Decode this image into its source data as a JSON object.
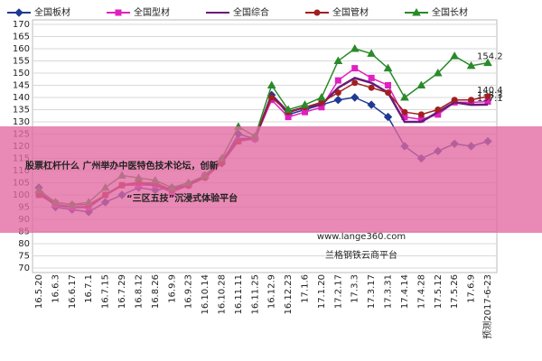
{
  "chart_data": {
    "type": "line",
    "categories": [
      "16.5.20",
      "16.6.3",
      "16.6.17",
      "16.7.1",
      "16.7.15",
      "16.7.29",
      "16.8.12",
      "16.8.26",
      "16.9.9",
      "16.9.23",
      "16.10.14",
      "16.10.28",
      "16.11.11",
      "16.11.25",
      "16.12.9",
      "16.12.23",
      "17.1.6",
      "17.1.20",
      "17.2.17",
      "17.3.3",
      "17.3.17",
      "17.3.31",
      "17.4.14",
      "17.4.28",
      "17.5.12",
      "17.5.26",
      "17.6.9",
      "预测2017-6-23"
    ],
    "series": [
      {
        "name": "全国板材",
        "color": "#1f3a93",
        "marker": "diamond",
        "values": [
          103,
          95,
          94,
          93,
          97,
          100,
          103,
          102,
          103,
          104,
          108,
          113,
          125,
          123,
          141,
          133,
          135,
          137,
          139,
          140,
          137,
          132,
          120,
          115,
          118,
          121,
          120,
          122
        ]
      },
      {
        "name": "全国型材",
        "color": "#e020c0",
        "marker": "square",
        "values": [
          100,
          96,
          95,
          95,
          100,
          104,
          104,
          104,
          101,
          104,
          108,
          114,
          122,
          123,
          139,
          132,
          134,
          136,
          147,
          152,
          148,
          145,
          132,
          131,
          133,
          138,
          138,
          138.3
        ],
        "value_labels": [
          null,
          null,
          null,
          null,
          null,
          null,
          null,
          null,
          null,
          null,
          null,
          null,
          null,
          null,
          null,
          null,
          null,
          null,
          null,
          null,
          null,
          null,
          null,
          null,
          null,
          null,
          null,
          "138.3"
        ]
      },
      {
        "name": "全国综合",
        "color": "#6a1a7a",
        "marker": "none",
        "values": [
          101,
          96,
          95,
          95,
          100,
          104,
          105,
          104,
          102,
          104,
          108,
          114,
          123,
          123,
          141,
          134,
          136,
          137,
          144,
          148,
          146,
          142,
          130,
          130,
          134,
          138,
          137,
          137.1
        ],
        "value_labels": [
          null,
          null,
          null,
          null,
          null,
          null,
          null,
          null,
          null,
          null,
          null,
          null,
          null,
          null,
          null,
          null,
          null,
          null,
          null,
          null,
          null,
          null,
          null,
          null,
          null,
          null,
          null,
          "137.1"
        ]
      },
      {
        "name": "全国管材",
        "color": "#a02020",
        "marker": "circle",
        "values": [
          100,
          97,
          96,
          96,
          100,
          104,
          105,
          105,
          102,
          104,
          107,
          113,
          122,
          124,
          140,
          134,
          136,
          138,
          142,
          146,
          144,
          142,
          134,
          133,
          135,
          139,
          139,
          140.4
        ],
        "value_labels": [
          null,
          null,
          null,
          null,
          null,
          null,
          null,
          null,
          null,
          null,
          null,
          null,
          null,
          null,
          null,
          null,
          null,
          null,
          null,
          null,
          null,
          null,
          null,
          null,
          null,
          null,
          null,
          "140.4"
        ]
      },
      {
        "name": "全国长材",
        "color": "#2a8a2a",
        "marker": "triangle",
        "values": [
          102,
          97,
          96,
          97,
          103,
          108,
          107,
          106,
          103,
          105,
          108,
          115,
          128,
          124,
          145,
          135,
          137,
          140,
          155,
          160,
          158,
          152,
          140,
          145,
          150,
          157,
          153,
          154.2
        ],
        "value_labels": [
          null,
          null,
          null,
          null,
          null,
          null,
          null,
          null,
          null,
          null,
          null,
          null,
          null,
          null,
          null,
          null,
          null,
          null,
          null,
          null,
          null,
          null,
          null,
          null,
          null,
          null,
          null,
          "154.2"
        ]
      }
    ],
    "ylim": [
      70,
      170
    ],
    "yticks": [
      70,
      75,
      80,
      85,
      90,
      95,
      100,
      105,
      110,
      115,
      120,
      125,
      130,
      135,
      140,
      145,
      150,
      155,
      160,
      165,
      170
    ],
    "grid": true,
    "banner": [
      "股票杠杆什么 广州举办中医特色技术论坛，创新",
      "“三区五技”沉浸式体验平台"
    ],
    "watermark": [
      "www.lange360.com",
      "兰格钢铁云商平台"
    ]
  }
}
